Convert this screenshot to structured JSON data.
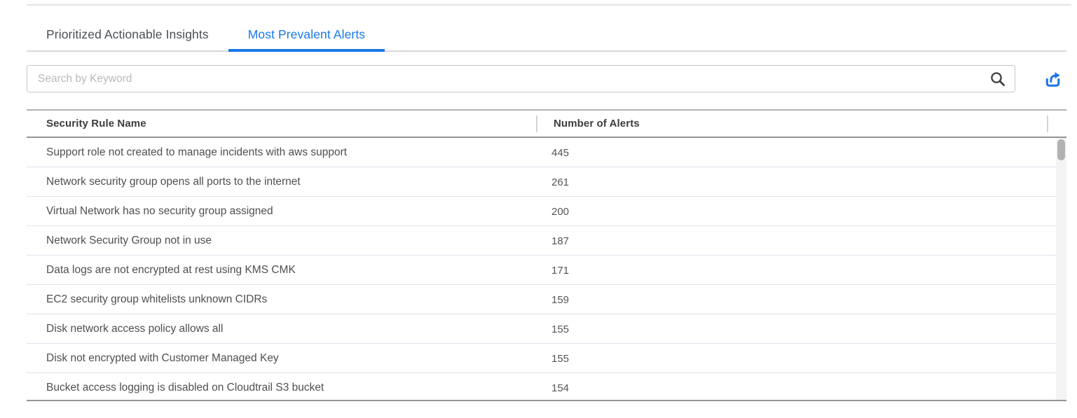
{
  "tabs": [
    {
      "label": "Prioritized Actionable Insights",
      "active": false
    },
    {
      "label": "Most Prevalent Alerts",
      "active": true
    }
  ],
  "search": {
    "placeholder": "Search by Keyword",
    "value": ""
  },
  "toolbar": {
    "export_icon": "export-share-arrow",
    "search_icon": "magnifier"
  },
  "colors": {
    "accent_blue": "#1878e8",
    "header_text": "#3d3d3d",
    "row_text": "#4f4f4f",
    "row_divider": "#e0e3ee"
  },
  "table": {
    "columns": [
      {
        "label": "Security Rule Name"
      },
      {
        "label": "Number of Alerts"
      }
    ],
    "rows": [
      {
        "name": "Support role not created to manage incidents with aws support",
        "alerts": "445"
      },
      {
        "name": "Network security group opens all ports to the internet",
        "alerts": "261"
      },
      {
        "name": "Virtual Network has no security group assigned",
        "alerts": "200"
      },
      {
        "name": "Network Security Group not in use",
        "alerts": "187"
      },
      {
        "name": "Data logs are not encrypted at rest using KMS CMK",
        "alerts": "171"
      },
      {
        "name": "EC2 security group whitelists unknown CIDRs",
        "alerts": "159"
      },
      {
        "name": "Disk network access policy allows all",
        "alerts": "155"
      },
      {
        "name": "Disk not encrypted with Customer Managed Key",
        "alerts": "155"
      },
      {
        "name": "Bucket access logging is disabled on Cloudtrail S3 bucket",
        "alerts": "154"
      }
    ]
  }
}
